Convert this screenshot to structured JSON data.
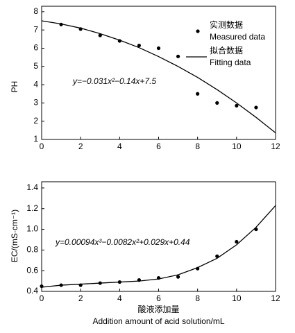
{
  "chart_data": [
    {
      "type": "scatter_line",
      "ylabel": "PH",
      "annotation": "y=−0.031x²−0.14x+7.5",
      "xlim": [
        0,
        12
      ],
      "xticks": [
        0,
        2,
        4,
        6,
        8,
        10,
        12
      ],
      "ylim": [
        1,
        8.3
      ],
      "yticks": [
        1,
        2,
        3,
        4,
        5,
        6,
        7,
        8
      ],
      "legend": "top-right",
      "series": [
        {
          "name": "实测数据",
          "name_en": "Measured data",
          "kind": "points",
          "color": "#000000",
          "x": [
            1,
            2,
            3,
            4,
            5,
            6,
            7,
            8,
            9,
            10,
            11
          ],
          "values": [
            7.3,
            7.05,
            6.7,
            6.4,
            6.15,
            6.0,
            5.55,
            3.5,
            3.0,
            2.85,
            2.75
          ]
        },
        {
          "name": "拟合数据",
          "name_en": "Fitting data",
          "kind": "line",
          "color": "#000000",
          "x": [
            0,
            1,
            2,
            3,
            4,
            5,
            6,
            7,
            8,
            9,
            10,
            11,
            12
          ],
          "values": [
            7.5,
            7.33,
            7.1,
            6.8,
            6.44,
            6.03,
            5.54,
            5.0,
            4.4,
            3.73,
            3.0,
            2.21,
            1.36
          ]
        }
      ]
    },
    {
      "type": "scatter_line",
      "ylabel": "EC/(mS·cm⁻¹)",
      "annotation": "y=0.00094x³−0.0082x²+0.029x+0.44",
      "xlabel": "酸液添加量",
      "xlabel_en": "Addition amount of acid solution/mL",
      "xlim": [
        0,
        12
      ],
      "xticks": [
        0,
        2,
        4,
        6,
        8,
        10,
        12
      ],
      "ylim": [
        0.4,
        1.46
      ],
      "yticks": [
        0.4,
        0.6,
        0.8,
        {
          "value": 1.0,
          "label": "1.0"
        },
        1.2,
        1.4
      ],
      "series": [
        {
          "kind": "points",
          "color": "#000000",
          "x": [
            0,
            1,
            2,
            3,
            4,
            5,
            6,
            7,
            8,
            9,
            10,
            11
          ],
          "values": [
            0.45,
            0.46,
            0.46,
            0.48,
            0.49,
            0.51,
            0.53,
            0.54,
            0.62,
            0.74,
            0.88,
            1.0
          ]
        },
        {
          "kind": "line",
          "color": "#000000",
          "x": [
            0,
            1,
            2,
            3,
            4,
            5,
            6,
            7,
            8,
            9,
            10,
            11,
            12
          ],
          "values": [
            0.44,
            0.46,
            0.47,
            0.48,
            0.49,
            0.5,
            0.52,
            0.56,
            0.63,
            0.72,
            0.85,
            1.02,
            1.23
          ]
        }
      ]
    }
  ]
}
